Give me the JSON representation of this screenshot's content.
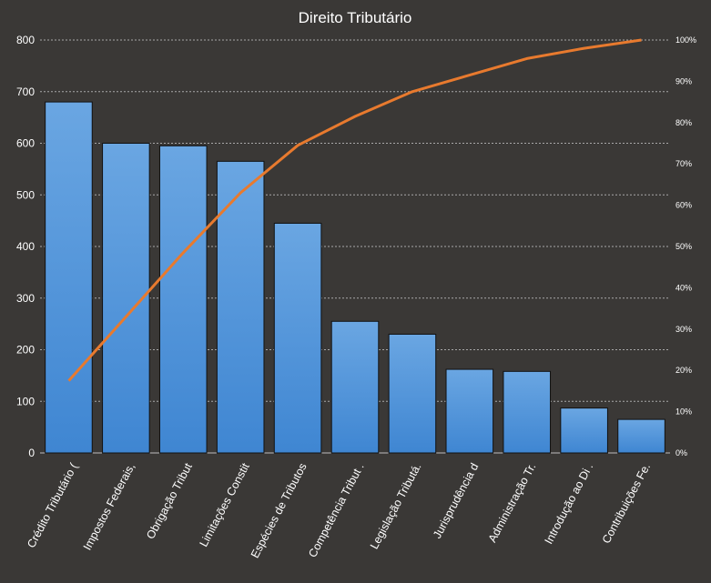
{
  "chart_data": {
    "type": "bar",
    "title": "Direito Tributário",
    "xlabel": "",
    "ylabel": "",
    "categories": [
      "Crédito Tributário (",
      "Impostos Federais,",
      "Obrigação Tribut",
      "Limitações Constit",
      "Espécies de Tributos",
      "Competência Tribut .",
      "Legislação Tributá.",
      "Jurisprudência d",
      "Administração Tr.",
      "Introdução ao Di .",
      "Contribuições Fe."
    ],
    "series": [
      {
        "type": "bar",
        "values": [
          680,
          600,
          595,
          565,
          445,
          255,
          230,
          162,
          158,
          87,
          65
        ]
      },
      {
        "type": "line",
        "axis": "secondary",
        "values": [
          17.5,
          33,
          48.5,
          63,
          74.5,
          81.5,
          87.5,
          91.5,
          95.5,
          98,
          100
        ]
      }
    ],
    "ylim": [
      0,
      800
    ],
    "yticks": [
      0,
      100,
      200,
      300,
      400,
      500,
      600,
      700,
      800
    ],
    "y2lim": [
      0,
      100
    ],
    "y2ticks": [
      "0%",
      "10%",
      "20%",
      "30%",
      "40%",
      "50%",
      "60%",
      "70%",
      "80%",
      "90%",
      "100%"
    ],
    "grid": true,
    "colors": {
      "background": "#3a3836",
      "bar": "#4a90d9",
      "line": "#e87a2e",
      "grid": "#a8a8a8",
      "text": "#ffffff"
    }
  }
}
